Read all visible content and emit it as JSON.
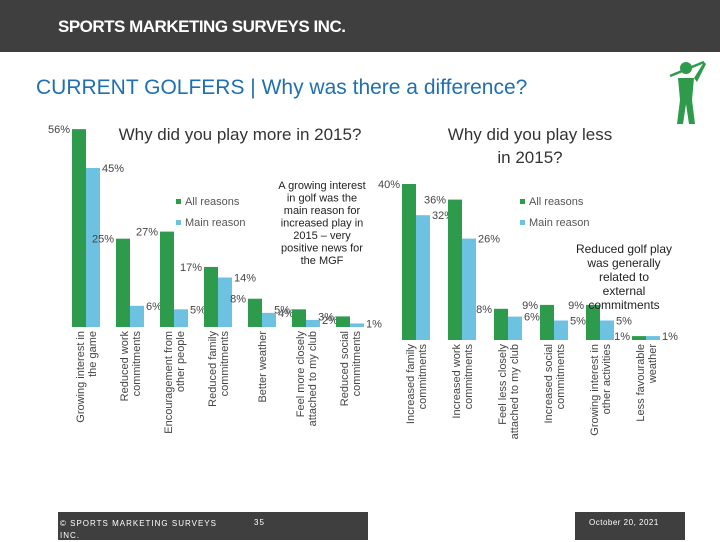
{
  "header": {
    "brand": "SPORTS MARKETING SURVEYS INC."
  },
  "page_title": "CURRENT GOLFERS | Why was there a difference?",
  "colors": {
    "all_reasons": "#2e9a4c",
    "main_reason": "#6cc2e0",
    "header_bg": "#3f3f3f",
    "title": "#1f6fb2"
  },
  "legend": {
    "all_label": "All reasons",
    "main_label": "Main reason"
  },
  "callouts": {
    "more": "A growing interest in golf was the main reason for increased play in 2015 – very positive news for the MGF",
    "less": "Reduced golf play was generally related to external commitments"
  },
  "footer": {
    "copyright": "© SPORTS MARKETING SURVEYS INC.",
    "page_number": "35",
    "date": "October 20, 2021"
  },
  "chart_data": [
    {
      "type": "bar",
      "title": "Why did you play more in 2015?",
      "categories": [
        "Growing interest in the game",
        "Reduced work commitments",
        "Encouragement from other people",
        "Reduced family commitments",
        "Better weather",
        "Feel more closely attached to my club",
        "Reduced social commitments"
      ],
      "series": [
        {
          "name": "All reasons",
          "values": [
            56,
            25,
            27,
            17,
            8,
            5,
            3
          ],
          "labels": [
            "56%",
            "25%",
            "27%",
            "17%",
            "8%",
            "5%",
            "3%"
          ]
        },
        {
          "name": "Main reason",
          "values": [
            45,
            6,
            5,
            14,
            4,
            2,
            1
          ],
          "labels": [
            "45%",
            "6%",
            "5%",
            "14%",
            "4%",
            "2%",
            "1%"
          ]
        }
      ],
      "ylim": [
        0,
        60
      ]
    },
    {
      "type": "bar",
      "title": "Why did you play less in 2015?",
      "categories": [
        "Increased family commitments",
        "Increased work commitments",
        "Feel less closely attached to my club",
        "Increased social commitments",
        "Growing interest in other activities",
        "Less favourable weather"
      ],
      "series": [
        {
          "name": "All reasons",
          "values": [
            40,
            36,
            8,
            9,
            9,
            1
          ],
          "labels": [
            "40%",
            "36%",
            "8%",
            "9%",
            "9%",
            "1%"
          ]
        },
        {
          "name": "Main reason",
          "values": [
            32,
            26,
            6,
            5,
            5,
            1
          ],
          "labels": [
            "32%",
            "26%",
            "6%",
            "5%",
            "5%",
            "1%"
          ]
        }
      ],
      "ylim": [
        0,
        60
      ]
    }
  ]
}
